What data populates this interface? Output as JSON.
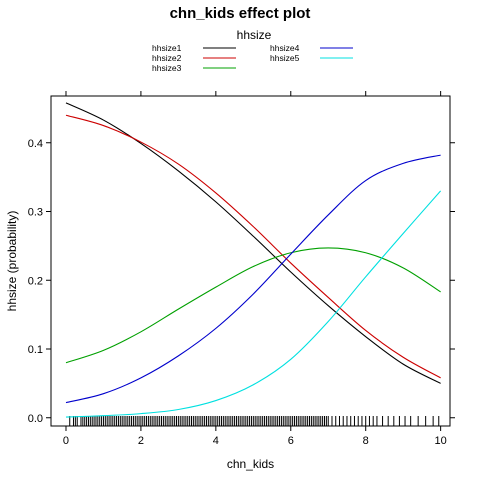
{
  "chart_data": {
    "type": "line",
    "title": "chn_kids effect plot",
    "xlabel": "chn_kids",
    "ylabel": "hhsize (probability)",
    "legend_title": "hhsize",
    "legend_position": "top",
    "grid": false,
    "xlim": [
      -0.4,
      10.25
    ],
    "ylim": [
      -0.012,
      0.468
    ],
    "xticks": [
      0,
      2,
      4,
      6,
      8,
      10
    ],
    "yticks": [
      0.0,
      0.1,
      0.2,
      0.3,
      0.4
    ],
    "ytick_labels": [
      "0.0",
      "0.1",
      "0.2",
      "0.3",
      "0.4"
    ],
    "x": [
      0,
      1,
      2,
      3,
      4,
      5,
      6,
      7,
      8,
      9,
      10
    ],
    "series": [
      {
        "name": "hhsize1",
        "color": "#000000",
        "values": [
          0.458,
          0.433,
          0.399,
          0.359,
          0.314,
          0.264,
          0.212,
          0.163,
          0.118,
          0.078,
          0.05
        ]
      },
      {
        "name": "hhsize2",
        "color": "#cc0000",
        "values": [
          0.44,
          0.425,
          0.401,
          0.369,
          0.327,
          0.278,
          0.225,
          0.175,
          0.127,
          0.088,
          0.058
        ]
      },
      {
        "name": "hhsize3",
        "color": "#00a000",
        "values": [
          0.08,
          0.098,
          0.125,
          0.158,
          0.19,
          0.22,
          0.24,
          0.247,
          0.24,
          0.218,
          0.183
        ]
      },
      {
        "name": "hhsize4",
        "color": "#0000cc",
        "values": [
          0.022,
          0.035,
          0.058,
          0.09,
          0.13,
          0.18,
          0.238,
          0.295,
          0.345,
          0.37,
          0.382
        ]
      },
      {
        "name": "hhsize5",
        "color": "#00e0e0",
        "values": [
          0.001,
          0.003,
          0.006,
          0.012,
          0.025,
          0.048,
          0.085,
          0.14,
          0.205,
          0.268,
          0.33
        ]
      }
    ],
    "rug": [
      0.1,
      0.2,
      0.25,
      0.3,
      0.4,
      0.45,
      0.5,
      0.55,
      0.6,
      0.65,
      0.7,
      0.75,
      0.8,
      0.85,
      0.9,
      0.95,
      1.0,
      1.05,
      1.1,
      1.15,
      1.2,
      1.25,
      1.3,
      1.35,
      1.4,
      1.45,
      1.5,
      1.55,
      1.6,
      1.65,
      1.7,
      1.75,
      1.8,
      1.85,
      1.9,
      1.95,
      2.0,
      2.05,
      2.1,
      2.15,
      2.2,
      2.25,
      2.3,
      2.35,
      2.4,
      2.45,
      2.5,
      2.55,
      2.6,
      2.65,
      2.7,
      2.75,
      2.8,
      2.85,
      2.9,
      2.95,
      3.0,
      3.05,
      3.1,
      3.15,
      3.2,
      3.25,
      3.3,
      3.35,
      3.4,
      3.45,
      3.5,
      3.55,
      3.6,
      3.65,
      3.7,
      3.75,
      3.8,
      3.85,
      3.9,
      3.95,
      4.0,
      4.05,
      4.1,
      4.15,
      4.2,
      4.25,
      4.3,
      4.35,
      4.4,
      4.45,
      4.5,
      4.55,
      4.6,
      4.65,
      4.7,
      4.75,
      4.8,
      4.85,
      4.9,
      4.95,
      5.0,
      5.05,
      5.1,
      5.15,
      5.2,
      5.25,
      5.3,
      5.35,
      5.4,
      5.45,
      5.5,
      5.55,
      5.6,
      5.65,
      5.7,
      5.75,
      5.8,
      5.85,
      5.9,
      5.95,
      6.0,
      6.05,
      6.1,
      6.15,
      6.2,
      6.25,
      6.3,
      6.35,
      6.4,
      6.45,
      6.5,
      6.55,
      6.6,
      6.65,
      6.7,
      6.75,
      6.8,
      6.85,
      6.9,
      6.95,
      7.0,
      7.1,
      7.2,
      7.3,
      7.4,
      7.5,
      7.6,
      7.7,
      7.8,
      7.9,
      8.0,
      8.1,
      8.2,
      8.3,
      8.45,
      8.6,
      8.75,
      8.9,
      9.05,
      9.2,
      9.4,
      9.6,
      9.8,
      9.95
    ]
  }
}
